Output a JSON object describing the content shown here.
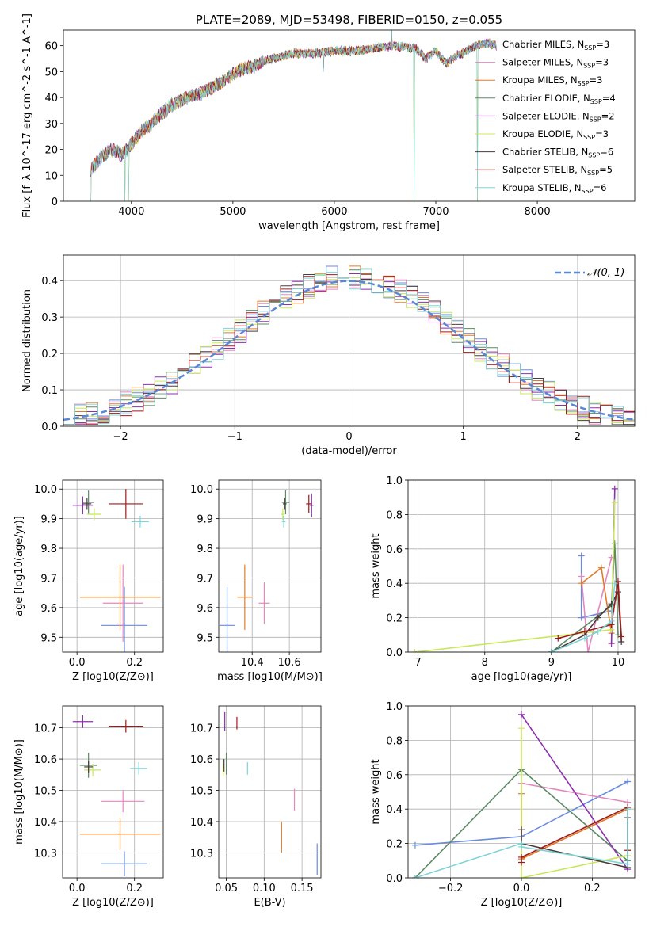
{
  "colors": {
    "series": [
      "#6a8be0",
      "#e388c0",
      "#e07b2a",
      "#5b8a64",
      "#8e2fb0",
      "#c8e85a",
      "#4a3a3a",
      "#a11a1a",
      "#7fd4d8"
    ],
    "grid": "#b0b0b0"
  },
  "chart_data": [
    {
      "type": "line",
      "title": "PLATE=2089, MJD=53498, FIBERID=0150, z=0.055",
      "xlabel": "wavelength [Angstrom, rest frame]",
      "ylabel": "Flux [f_λ 10^-17 erg cm^-2 s^-1 A^-1]",
      "xlim": [
        3330,
        8960
      ],
      "ylim": [
        0,
        66
      ],
      "xticks": [
        4000,
        5000,
        6000,
        7000,
        8000
      ],
      "yticks": [
        0,
        10,
        20,
        30,
        40,
        50,
        60
      ],
      "legend": "top-right",
      "series": [
        {
          "name": "Chabrier MILES, N_SSP=3"
        },
        {
          "name": "Salpeter MILES, N_SSP=3"
        },
        {
          "name": "Kroupa MILES, N_SSP=3"
        },
        {
          "name": "Chabrier ELODIE, N_SSP=4"
        },
        {
          "name": "Salpeter ELODIE, N_SSP=2"
        },
        {
          "name": "Kroupa ELODIE, N_SSP=3"
        },
        {
          "name": "Chabrier STELIB, N_SSP=6"
        },
        {
          "name": "Salpeter STELIB, N_SSP=5"
        },
        {
          "name": "Kroupa STELIB, N_SSP=6"
        }
      ],
      "continuum": {
        "x": [
          3600,
          3700,
          3800,
          3900,
          4000,
          4100,
          4200,
          4300,
          4400,
          4500,
          4600,
          4700,
          4800,
          4900,
          5000,
          5100,
          5200,
          5300,
          5400,
          5500,
          5600,
          5800,
          6000,
          6200,
          6400,
          6600,
          6800,
          6900,
          7000,
          7100,
          7200,
          7300,
          7400,
          7500,
          7600
        ],
        "y": [
          12,
          17,
          20,
          18,
          22,
          27,
          30,
          34,
          37,
          39,
          41,
          42,
          44,
          46,
          49,
          51,
          52,
          54,
          55,
          56,
          57,
          57,
          58,
          58,
          59,
          60,
          59,
          55,
          58,
          53,
          56,
          58,
          60,
          61,
          60
        ]
      },
      "spikes": [
        {
          "x": 3600,
          "y": 0
        },
        {
          "x": 3935,
          "y": 0
        },
        {
          "x": 3970,
          "y": 0
        },
        {
          "x": 5175,
          "y": 43
        },
        {
          "x": 5890,
          "y": 50
        },
        {
          "x": 6563,
          "y": 68
        },
        {
          "x": 6785,
          "y": 0
        },
        {
          "x": 7410,
          "y": 0
        }
      ]
    },
    {
      "type": "bar",
      "xlabel": "(data-model)/error",
      "ylabel": "Normed distribution",
      "xlim": [
        -2.5,
        2.5
      ],
      "ylim": [
        0,
        0.47
      ],
      "xticks": [
        -2,
        -1,
        0,
        1,
        2
      ],
      "yticks": [
        0.0,
        0.1,
        0.2,
        0.3,
        0.4
      ],
      "legend": "top-right",
      "reference": {
        "name": "𝒩(0, 1)",
        "mean": 0,
        "sigma": 1
      }
    },
    {
      "type": "scatter",
      "xlabel": "Z [log10(Z/Z⊙)]",
      "ylabel": "age  [log10(age/yr)]",
      "xlim": [
        -0.05,
        0.3
      ],
      "ylim": [
        9.45,
        10.03
      ],
      "xticks": [
        0.0,
        0.2
      ],
      "yticks": [
        9.5,
        9.6,
        9.7,
        9.8,
        9.9,
        10.0
      ],
      "points": [
        {
          "x": 0.165,
          "y": 9.54,
          "xerr": 0.08,
          "yerr": 0.13
        },
        {
          "x": 0.16,
          "y": 9.615,
          "xerr": 0.07,
          "yerr": 0.13
        },
        {
          "x": 0.15,
          "y": 9.635,
          "xerr": 0.14,
          "yerr": 0.11
        },
        {
          "x": 0.04,
          "y": 9.955,
          "xerr": 0.02,
          "yerr": 0.04
        },
        {
          "x": 0.02,
          "y": 9.945,
          "xerr": 0.035,
          "yerr": 0.03
        },
        {
          "x": 0.06,
          "y": 9.915,
          "xerr": 0.025,
          "yerr": 0.02
        },
        {
          "x": 0.035,
          "y": 9.95,
          "xerr": 0.015,
          "yerr": 0.02
        },
        {
          "x": 0.17,
          "y": 9.95,
          "xerr": 0.06,
          "yerr": 0.05
        },
        {
          "x": 0.22,
          "y": 9.89,
          "xerr": 0.03,
          "yerr": 0.02
        }
      ]
    },
    {
      "type": "scatter",
      "xlabel": "mass [log10(M/M⊙)]",
      "ylabel": "",
      "xlim": [
        10.22,
        10.77
      ],
      "ylim": [
        9.45,
        10.03
      ],
      "xticks": [
        10.4,
        10.6
      ],
      "yticks": [
        9.5,
        9.6,
        9.7,
        9.8,
        9.9,
        10.0
      ],
      "points": [
        {
          "x": 10.265,
          "y": 9.54,
          "xerr": 0.04,
          "yerr": 0.13
        },
        {
          "x": 10.465,
          "y": 9.615,
          "xerr": 0.03,
          "yerr": 0.07
        },
        {
          "x": 10.36,
          "y": 9.635,
          "xerr": 0.04,
          "yerr": 0.11
        },
        {
          "x": 10.58,
          "y": 9.955,
          "xerr": 0.02,
          "yerr": 0.04
        },
        {
          "x": 10.72,
          "y": 9.945,
          "xerr": 0.01,
          "yerr": 0.04
        },
        {
          "x": 10.565,
          "y": 9.915,
          "xerr": 0.01,
          "yerr": 0.02
        },
        {
          "x": 10.575,
          "y": 9.95,
          "xerr": 0.01,
          "yerr": 0.02
        },
        {
          "x": 10.705,
          "y": 9.95,
          "xerr": 0.015,
          "yerr": 0.03
        },
        {
          "x": 10.57,
          "y": 9.89,
          "xerr": 0.01,
          "yerr": 0.02
        }
      ]
    },
    {
      "type": "line",
      "xlabel": "age  [log10(age/yr)]",
      "ylabel": "mass weight",
      "xlim": [
        6.85,
        10.25
      ],
      "ylim": [
        0,
        1
      ],
      "xticks": [
        7,
        8,
        9,
        10
      ],
      "yticks": [
        0.0,
        0.2,
        0.4,
        0.6,
        0.8,
        1.0
      ],
      "series": [
        {
          "x": [
            9.45,
            9.45,
            9.9
          ],
          "y": [
            0.56,
            0.2,
            0.24
          ]
        },
        {
          "x": [
            9.45,
            9.55,
            9.9
          ],
          "y": [
            0.44,
            0.0,
            0.55
          ]
        },
        {
          "x": [
            9.45,
            9.75,
            9.9
          ],
          "y": [
            0.4,
            0.49,
            0.11
          ]
        },
        {
          "x": [
            9.0,
            9.9,
            9.95,
            10.0
          ],
          "y": [
            0.0,
            0.27,
            0.63,
            0.1
          ]
        },
        {
          "x": [
            9.9,
            9.95
          ],
          "y": [
            0.05,
            0.95
          ]
        },
        {
          "x": [
            6.95,
            9.9,
            9.95
          ],
          "y": [
            0.0,
            0.13,
            0.87
          ]
        },
        {
          "x": [
            9.0,
            9.5,
            9.7,
            9.9,
            10.0,
            10.05
          ],
          "y": [
            0.0,
            0.1,
            0.2,
            0.28,
            0.35,
            0.06
          ]
        },
        {
          "x": [
            9.1,
            9.5,
            9.9,
            10.0,
            10.05
          ],
          "y": [
            0.08,
            0.12,
            0.16,
            0.41,
            0.09
          ]
        },
        {
          "x": [
            9.0,
            9.5,
            9.7,
            9.9,
            9.95
          ],
          "y": [
            0.0,
            0.08,
            0.12,
            0.18,
            0.4
          ]
        }
      ]
    },
    {
      "type": "scatter",
      "xlabel": "Z [log10(Z/Z⊙)]",
      "ylabel": "mass [log10(M/M⊙)]",
      "xlim": [
        -0.05,
        0.3
      ],
      "ylim": [
        10.22,
        10.77
      ],
      "xticks": [
        0.0,
        0.2
      ],
      "yticks": [
        10.3,
        10.4,
        10.5,
        10.6,
        10.7
      ],
      "points": [
        {
          "x": 0.165,
          "y": 10.265,
          "xerr": 0.08,
          "yerr": 0.04
        },
        {
          "x": 0.16,
          "y": 10.465,
          "xerr": 0.075,
          "yerr": 0.035
        },
        {
          "x": 0.15,
          "y": 10.36,
          "xerr": 0.14,
          "yerr": 0.05
        },
        {
          "x": 0.04,
          "y": 10.58,
          "xerr": 0.03,
          "yerr": 0.04
        },
        {
          "x": 0.02,
          "y": 10.72,
          "xerr": 0.035,
          "yerr": 0.02
        },
        {
          "x": 0.055,
          "y": 10.565,
          "xerr": 0.03,
          "yerr": 0.02
        },
        {
          "x": 0.04,
          "y": 10.575,
          "xerr": 0.015,
          "yerr": 0.02
        },
        {
          "x": 0.17,
          "y": 10.705,
          "xerr": 0.06,
          "yerr": 0.02
        },
        {
          "x": 0.215,
          "y": 10.57,
          "xerr": 0.03,
          "yerr": 0.02
        }
      ]
    },
    {
      "type": "scatter",
      "xlabel": "E(B-V)",
      "ylabel": "",
      "xlim": [
        0.04,
        0.175
      ],
      "ylim": [
        10.22,
        10.77
      ],
      "xticks": [
        0.05,
        0.1,
        0.15
      ],
      "yticks": [
        10.3,
        10.4,
        10.5,
        10.6,
        10.7
      ],
      "points": [
        {
          "x": 0.17,
          "y": 10.28,
          "yerr": 0.05
        },
        {
          "x": 0.14,
          "y": 10.47,
          "yerr": 0.035
        },
        {
          "x": 0.123,
          "y": 10.35,
          "yerr": 0.05
        },
        {
          "x": 0.05,
          "y": 10.585,
          "yerr": 0.035
        },
        {
          "x": 0.048,
          "y": 10.72,
          "yerr": 0.03
        },
        {
          "x": 0.046,
          "y": 10.565,
          "yerr": 0.02
        },
        {
          "x": 0.047,
          "y": 10.58,
          "yerr": 0.02
        },
        {
          "x": 0.064,
          "y": 10.715,
          "yerr": 0.02
        },
        {
          "x": 0.078,
          "y": 10.57,
          "yerr": 0.02
        }
      ]
    },
    {
      "type": "line",
      "xlabel": "Z [log10(Z/Z⊙)]",
      "ylabel": "mass weight",
      "xlim": [
        -0.32,
        0.32
      ],
      "ylim": [
        0,
        1
      ],
      "xticks": [
        -0.2,
        0.0,
        0.2
      ],
      "yticks": [
        0.0,
        0.2,
        0.4,
        0.6,
        0.8,
        1.0
      ],
      "series": [
        {
          "x": [
            -0.3,
            0.0,
            0.3
          ],
          "y": [
            0.19,
            0.24,
            0.56
          ]
        },
        {
          "x": [
            0.0,
            0.3
          ],
          "y": [
            0.55,
            0.44
          ]
        },
        {
          "x": [
            0.0,
            0.0,
            0.3
          ],
          "y": [
            0.49,
            0.11,
            0.4
          ]
        },
        {
          "x": [
            -0.3,
            0.0,
            0.3
          ],
          "y": [
            0.0,
            0.63,
            0.1
          ]
        },
        {
          "x": [
            0.0,
            0.3
          ],
          "y": [
            0.95,
            0.05
          ]
        },
        {
          "x": [
            0.0,
            0.0,
            0.3
          ],
          "y": [
            0.87,
            0.0,
            0.13
          ]
        },
        {
          "x": [
            0.0,
            0.0,
            0.3,
            0.3
          ],
          "y": [
            0.28,
            0.2,
            0.06,
            0.35
          ]
        },
        {
          "x": [
            0.0,
            0.0,
            0.3,
            0.3
          ],
          "y": [
            0.09,
            0.12,
            0.41,
            0.16
          ]
        },
        {
          "x": [
            -0.3,
            0.0,
            0.0,
            0.3,
            0.3
          ],
          "y": [
            0.0,
            0.2,
            0.18,
            0.08,
            0.4
          ]
        }
      ]
    }
  ]
}
